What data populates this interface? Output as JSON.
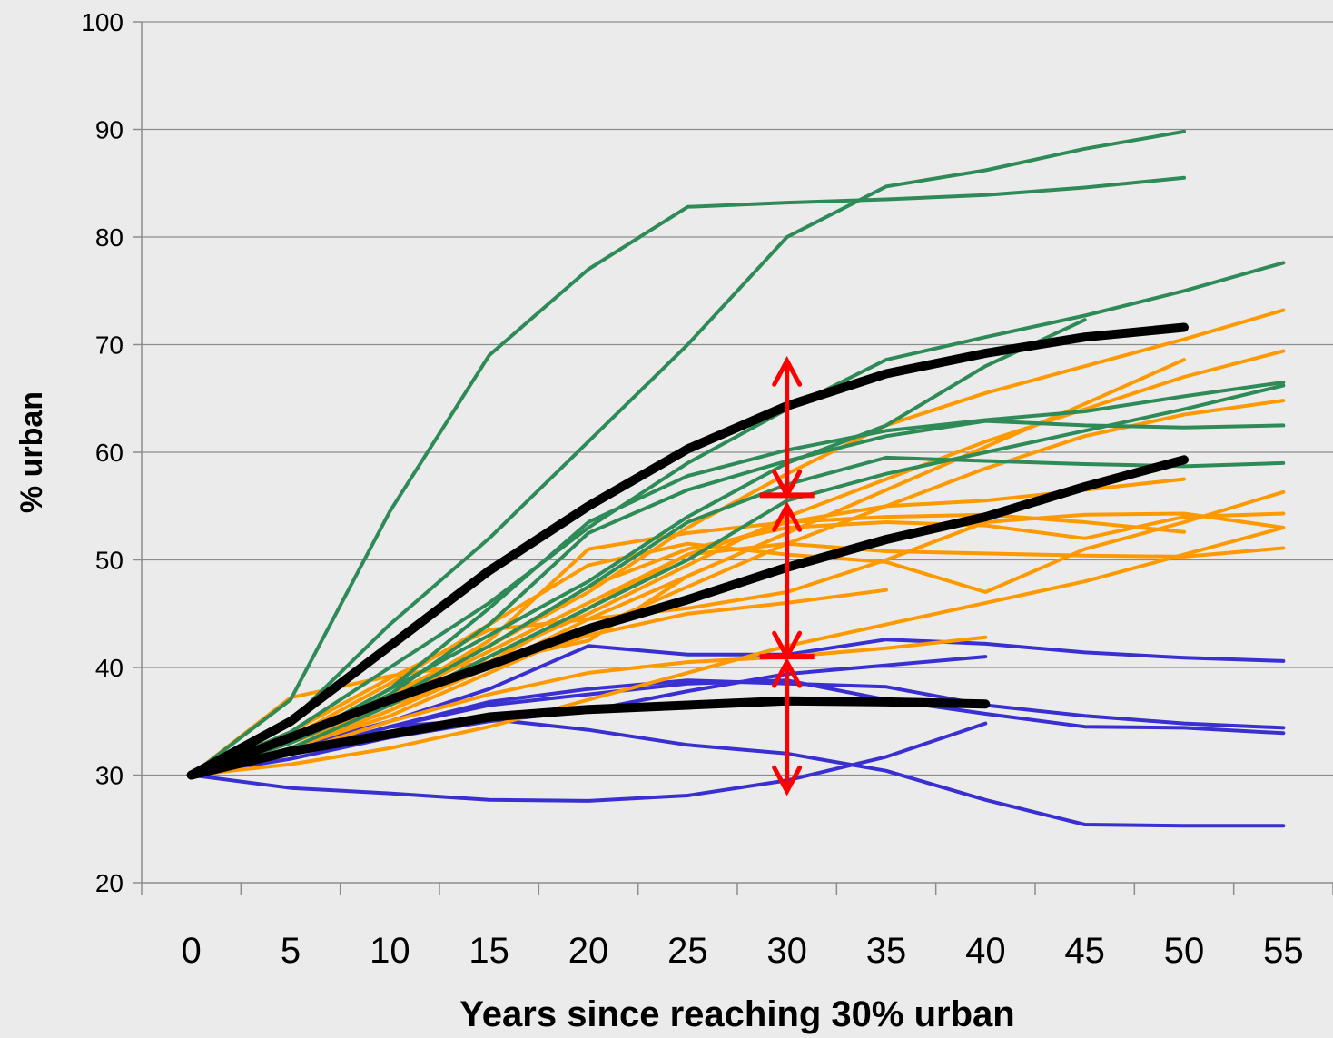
{
  "chart_data": {
    "type": "line",
    "title": "",
    "xlabel": "Years since reaching 30% urban",
    "ylabel": "% urban",
    "xlim": [
      -2.5,
      57.5
    ],
    "ylim": [
      20,
      100
    ],
    "x_ticks": [
      0,
      5,
      10,
      15,
      20,
      25,
      30,
      35,
      40,
      45,
      50,
      55
    ],
    "y_ticks": [
      20,
      30,
      40,
      50,
      60,
      70,
      80,
      90,
      100
    ],
    "grid": "horizontal",
    "legend": "none",
    "colors": {
      "high_group": "#2e8b57",
      "middle_group": "#ff9900",
      "low_group": "#3a2fd0",
      "mean": "#000000",
      "range_arrows": "#ff0000",
      "grid": "#8c8c8c",
      "background": "#ebebeb"
    },
    "series": [
      {
        "group": "high",
        "x": [
          0,
          5,
          10,
          15,
          20,
          25,
          30,
          35,
          40,
          45,
          50
        ],
        "values": [
          30,
          37,
          54.5,
          69,
          77,
          82.8,
          83.2,
          83.5,
          83.9,
          84.6,
          85.5
        ]
      },
      {
        "group": "high",
        "x": [
          0,
          5,
          10,
          15,
          20,
          25,
          30,
          35,
          40,
          45,
          50
        ],
        "values": [
          30,
          35,
          44,
          52,
          61,
          70,
          80,
          84.7,
          86.2,
          88.2,
          89.8
        ]
      },
      {
        "group": "high",
        "x": [
          0,
          5,
          10,
          15,
          20,
          25,
          30,
          35,
          40,
          45,
          50,
          55
        ],
        "values": [
          30,
          34,
          40,
          46,
          53,
          59,
          64,
          68.6,
          70.7,
          72.7,
          75,
          77.6
        ]
      },
      {
        "group": "high",
        "x": [
          0,
          5,
          10,
          15,
          20,
          25,
          30,
          35,
          40,
          45
        ],
        "values": [
          30,
          33,
          38,
          43,
          48,
          54,
          59,
          62.5,
          68,
          72.3
        ]
      },
      {
        "group": "high",
        "x": [
          0,
          5,
          10,
          15,
          20,
          25,
          30,
          35,
          40,
          45,
          50,
          55
        ],
        "values": [
          30,
          33,
          38,
          45.5,
          53.5,
          57.8,
          60.2,
          62,
          63,
          63.8,
          65.2,
          66.5
        ]
      },
      {
        "group": "high",
        "x": [
          0,
          5,
          10,
          15,
          20,
          25,
          30,
          35,
          40,
          45,
          50,
          55
        ],
        "values": [
          30,
          33,
          37.5,
          44,
          52.5,
          56.5,
          59.2,
          61.5,
          62.9,
          62.5,
          62.3,
          62.5
        ]
      },
      {
        "group": "high",
        "x": [
          0,
          5,
          10,
          15,
          20,
          25,
          30,
          35,
          40,
          45,
          50,
          55
        ],
        "values": [
          30,
          33,
          37,
          42,
          47.5,
          53.5,
          57,
          59.5,
          59.2,
          58.9,
          58.7,
          59
        ]
      },
      {
        "group": "high",
        "x": [
          0,
          5,
          10,
          15,
          20,
          25,
          30,
          35,
          40,
          45,
          50,
          55
        ],
        "values": [
          30,
          32.5,
          36.5,
          41,
          45.5,
          50,
          55.5,
          58,
          60,
          62,
          64,
          66.2
        ]
      },
      {
        "group": "middle",
        "x": [
          0,
          5,
          10,
          15,
          20,
          25,
          30,
          35,
          40,
          45,
          50,
          55
        ],
        "values": [
          30,
          33,
          37.5,
          42,
          47,
          53,
          58,
          62.5,
          65.5,
          68,
          70.5,
          73.2
        ]
      },
      {
        "group": "middle",
        "x": [
          0,
          5,
          10,
          15,
          20,
          25,
          30,
          35,
          40,
          45,
          50,
          55
        ],
        "values": [
          30,
          33,
          36.5,
          41,
          45,
          49.5,
          54,
          57.5,
          61,
          64,
          67,
          69.4
        ]
      },
      {
        "group": "middle",
        "x": [
          0,
          5,
          10,
          15,
          20,
          25,
          30,
          35,
          40,
          45,
          50
        ],
        "values": [
          30,
          32.5,
          36,
          40,
          44.5,
          48.5,
          52.5,
          56.5,
          60.5,
          64.5,
          68.6
        ]
      },
      {
        "group": "middle",
        "x": [
          0,
          5,
          10,
          15,
          20,
          25,
          30,
          35,
          40,
          45,
          50,
          55
        ],
        "values": [
          30,
          32.5,
          35.5,
          39.5,
          43.5,
          47.5,
          51.5,
          55,
          58.5,
          61.5,
          63.5,
          64.8
        ]
      },
      {
        "group": "middle",
        "x": [
          0,
          5,
          10,
          15,
          20,
          25,
          30,
          35,
          40,
          45,
          50
        ],
        "values": [
          30,
          33,
          37,
          41.5,
          46,
          50.5,
          53.5,
          55,
          55.5,
          56.5,
          57.5
        ]
      },
      {
        "group": "middle",
        "x": [
          0,
          5,
          10,
          15,
          20,
          25,
          30,
          35,
          40,
          45,
          50
        ],
        "values": [
          30,
          33,
          37,
          42.5,
          51,
          52.5,
          53.5,
          54,
          54.2,
          53.5,
          52.6
        ]
      },
      {
        "group": "middle",
        "x": [
          0,
          5,
          10,
          15,
          20,
          25,
          30,
          35,
          40,
          45,
          50,
          55
        ],
        "values": [
          30,
          33.5,
          38.5,
          44,
          49.5,
          51.5,
          50.5,
          49.8,
          47,
          51,
          53.5,
          56.3
        ]
      },
      {
        "group": "middle",
        "x": [
          0,
          5,
          10,
          15,
          20,
          25,
          30,
          35,
          40,
          45,
          50,
          55
        ],
        "values": [
          30,
          32.5,
          36,
          40.5,
          45.5,
          50.5,
          51.5,
          50.8,
          50.6,
          50.4,
          50.3,
          51.1
        ]
      },
      {
        "group": "middle",
        "x": [
          0,
          5,
          10,
          15,
          20,
          25,
          30,
          35,
          40,
          45,
          50,
          55
        ],
        "values": [
          30,
          33,
          37.5,
          42,
          47.5,
          51,
          53,
          53.5,
          53.2,
          52,
          54,
          54.3
        ]
      },
      {
        "group": "middle",
        "x": [
          0,
          5,
          10,
          15,
          20,
          25,
          30,
          35,
          40,
          45,
          50,
          55
        ],
        "values": [
          30,
          34,
          39,
          43.5,
          44.5,
          45.5,
          47,
          50,
          53.5,
          54.2,
          54.3,
          53
        ]
      },
      {
        "group": "middle",
        "x": [
          0,
          5,
          10,
          15,
          20,
          25,
          30,
          35
        ],
        "values": [
          30,
          33,
          36.5,
          40,
          43,
          45,
          46,
          47.2
        ]
      },
      {
        "group": "middle",
        "x": [
          0,
          5,
          10,
          15,
          20,
          25,
          30,
          35,
          40,
          45,
          50,
          55
        ],
        "values": [
          30,
          31,
          32.5,
          34.5,
          37,
          39.5,
          42,
          44,
          46,
          48,
          50.5,
          53
        ]
      },
      {
        "group": "middle",
        "x": [
          0,
          5,
          10,
          15,
          20,
          25,
          30,
          35,
          40
        ],
        "values": [
          30,
          32,
          35,
          37.5,
          39.5,
          40.5,
          41,
          41.8,
          42.8
        ]
      },
      {
        "group": "middle",
        "x": [
          0,
          5,
          10,
          15,
          20,
          25,
          30
        ],
        "values": [
          30,
          37.2,
          39.2,
          40.5,
          42.5,
          48.5,
          52.5
        ]
      },
      {
        "group": "low",
        "x": [
          0,
          5,
          10,
          15,
          20,
          25,
          30,
          35,
          40,
          45,
          50,
          55
        ],
        "values": [
          30,
          32.5,
          35,
          38,
          42,
          41.2,
          41.2,
          42.6,
          42.2,
          41.4,
          40.9,
          40.6
        ]
      },
      {
        "group": "low",
        "x": [
          0,
          5,
          10,
          15,
          20,
          25,
          30,
          35,
          40,
          45,
          50,
          55
        ],
        "values": [
          30,
          32,
          34.5,
          36.8,
          38,
          38.8,
          38.5,
          38.2,
          36.5,
          35.5,
          34.8,
          34.4
        ]
      },
      {
        "group": "low",
        "x": [
          0,
          5,
          10,
          15,
          20,
          25,
          30,
          35,
          40,
          45,
          50,
          55
        ],
        "values": [
          30,
          32,
          34.5,
          36.5,
          37.5,
          38.5,
          38.8,
          37,
          35.7,
          34.5,
          34.4,
          33.9
        ]
      },
      {
        "group": "low",
        "x": [
          0,
          5,
          10,
          15,
          20,
          25,
          30,
          35,
          40
        ],
        "values": [
          30,
          31.5,
          33.5,
          35,
          36,
          37.8,
          39.4,
          40.2,
          41
        ]
      },
      {
        "group": "low",
        "x": [
          0,
          5,
          10,
          15,
          20,
          25,
          30,
          35,
          40,
          45,
          50,
          55
        ],
        "values": [
          30,
          32,
          34.5,
          35.2,
          34.2,
          32.8,
          32,
          30.4,
          27.7,
          25.4,
          25.3,
          25.3
        ]
      },
      {
        "group": "low",
        "x": [
          0,
          5,
          10,
          15,
          20,
          25,
          30,
          35,
          40
        ],
        "values": [
          30,
          28.8,
          28.3,
          27.7,
          27.6,
          28.1,
          29.5,
          31.7,
          34.8
        ]
      },
      {
        "group": "mean",
        "x": [
          0,
          5,
          10,
          15,
          20,
          25,
          30,
          35,
          40,
          45,
          50
        ],
        "values": [
          30,
          35,
          42,
          49,
          55,
          60.3,
          64.3,
          67.3,
          69.2,
          70.7,
          71.6
        ]
      },
      {
        "group": "mean",
        "x": [
          0,
          5,
          10,
          15,
          20,
          25,
          30,
          35,
          40,
          45,
          50
        ],
        "values": [
          30,
          33.5,
          37,
          40.2,
          43.6,
          46.3,
          49.3,
          51.9,
          54,
          56.8,
          59.3
        ]
      },
      {
        "group": "mean",
        "x": [
          0,
          5,
          10,
          15,
          20,
          25,
          30,
          35,
          40
        ],
        "values": [
          30,
          32.2,
          33.8,
          35.4,
          36.1,
          36.5,
          36.9,
          36.8,
          36.6
        ]
      }
    ],
    "annotations": [
      {
        "type": "double-arrow",
        "x": 30,
        "from": 56,
        "to": 68.5
      },
      {
        "type": "double-arrow",
        "x": 30,
        "from": 41,
        "to": 55
      },
      {
        "type": "double-arrow",
        "x": 30,
        "from": 28.5,
        "to": 40.5
      },
      {
        "type": "tick-mark",
        "x": 30,
        "y": 56
      },
      {
        "type": "tick-mark",
        "x": 30,
        "y": 41
      }
    ]
  }
}
